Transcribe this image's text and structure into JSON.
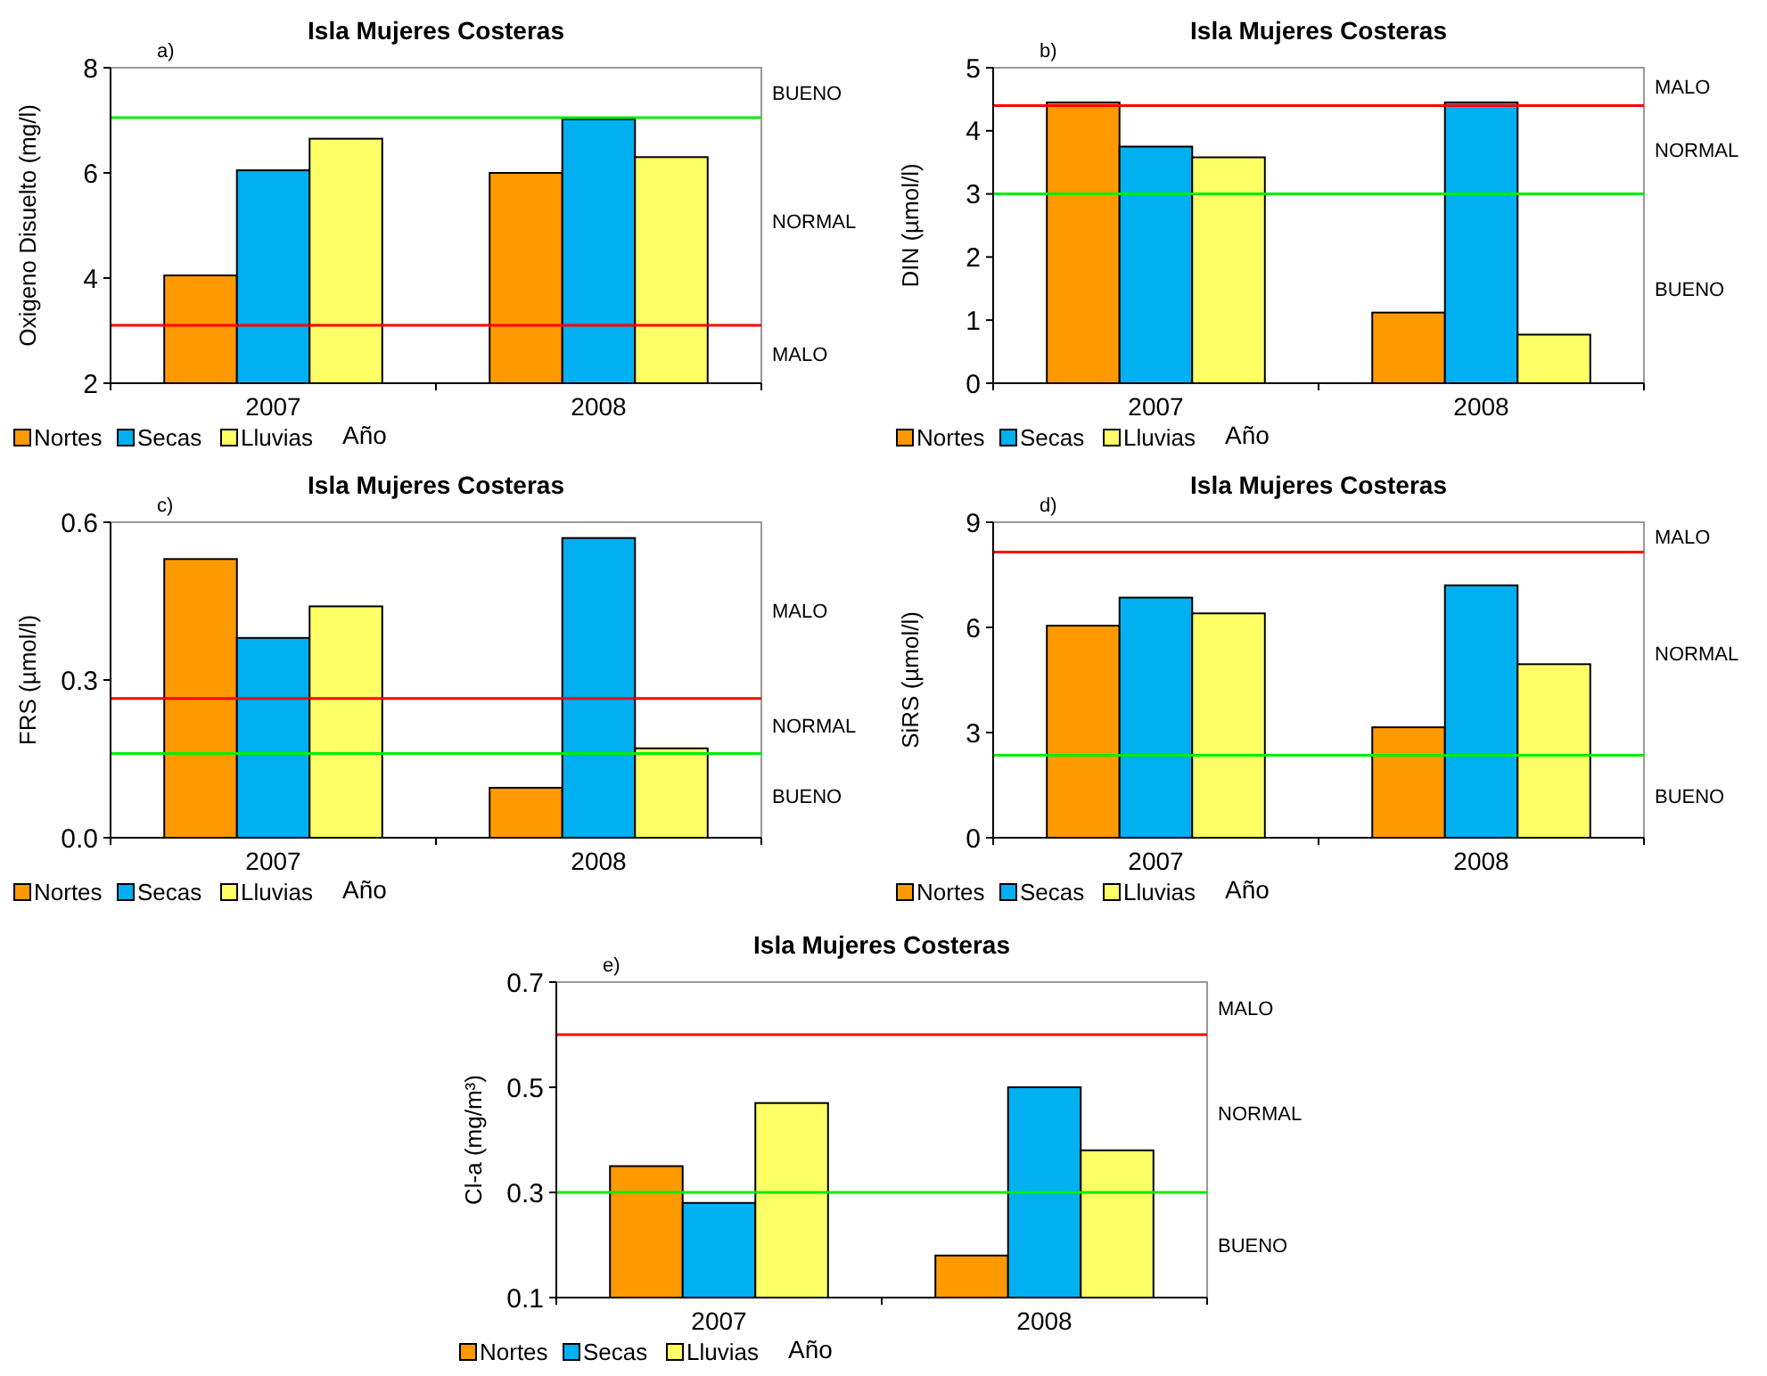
{
  "chart_data": [
    {
      "type": "bar",
      "title": "Isla Mujeres Costeras",
      "xlabel": "Año",
      "ylabel": "Oxigeno Disuelto (mg/l)",
      "categories": [
        "2007",
        "2008"
      ],
      "series": [
        {
          "name": "Nortes",
          "color": "#ff9900",
          "values": [
            4.05,
            6.0
          ]
        },
        {
          "name": "Secas",
          "color": "#00b0f0",
          "values": [
            6.05,
            7.02
          ]
        },
        {
          "name": "Lluvias",
          "color": "#ffff66",
          "values": [
            6.65,
            6.3
          ]
        }
      ],
      "ylim": [
        2,
        8
      ],
      "yticks": [
        2,
        4,
        6,
        8
      ],
      "legend": "bottom left",
      "ref_lines": [
        {
          "axis": "y",
          "value": 7.05,
          "color": "#00ee00"
        },
        {
          "axis": "y",
          "value": 3.1,
          "color": "#ff0000"
        }
      ],
      "annotations": [
        "a)",
        "BUENO",
        "NORMAL",
        "MALO"
      ]
    },
    {
      "type": "bar",
      "title": "Isla Mujeres Costeras",
      "xlabel": "Año",
      "ylabel": "DIN (µmol/l)",
      "categories": [
        "2007",
        "2008"
      ],
      "series": [
        {
          "name": "Nortes",
          "color": "#ff9900",
          "values": [
            4.45,
            1.12
          ]
        },
        {
          "name": "Secas",
          "color": "#00b0f0",
          "values": [
            3.75,
            4.45
          ]
        },
        {
          "name": "Lluvias",
          "color": "#ffff66",
          "values": [
            3.58,
            0.77
          ]
        }
      ],
      "ylim": [
        0,
        5
      ],
      "yticks": [
        0,
        1,
        2,
        3,
        4,
        5
      ],
      "legend": "bottom left",
      "ref_lines": [
        {
          "axis": "y",
          "value": 4.4,
          "color": "#ff0000"
        },
        {
          "axis": "y",
          "value": 3.0,
          "color": "#00ee00"
        }
      ],
      "annotations": [
        "b)",
        "MALO",
        "NORMAL",
        "BUENO"
      ]
    },
    {
      "type": "bar",
      "title": "Isla Mujeres Costeras",
      "xlabel": "Año",
      "ylabel": "FRS (µmol/l)",
      "categories": [
        "2007",
        "2008"
      ],
      "series": [
        {
          "name": "Nortes",
          "color": "#ff9900",
          "values": [
            0.53,
            0.095
          ]
        },
        {
          "name": "Secas",
          "color": "#00b0f0",
          "values": [
            0.38,
            0.57
          ]
        },
        {
          "name": "Lluvias",
          "color": "#ffff66",
          "values": [
            0.44,
            0.17
          ]
        }
      ],
      "ylim": [
        0,
        0.6
      ],
      "yticks": [
        {
          "value": 0,
          "label": "0.0"
        },
        0.3,
        0.6
      ],
      "legend": "bottom left",
      "ref_lines": [
        {
          "axis": "y",
          "value": 0.265,
          "color": "#ff0000"
        },
        {
          "axis": "y",
          "value": 0.16,
          "color": "#00ee00"
        }
      ],
      "annotations": [
        "c)",
        "MALO",
        "NORMAL",
        "BUENO"
      ]
    },
    {
      "type": "bar",
      "title": "Isla Mujeres Costeras",
      "xlabel": "Año",
      "ylabel": "SiRS  (µmol/l)",
      "categories": [
        "2007",
        "2008"
      ],
      "series": [
        {
          "name": "Nortes",
          "color": "#ff9900",
          "values": [
            6.05,
            3.15
          ]
        },
        {
          "name": "Secas",
          "color": "#00b0f0",
          "values": [
            6.85,
            7.2
          ]
        },
        {
          "name": "Lluvias",
          "color": "#ffff66",
          "values": [
            6.4,
            4.95
          ]
        }
      ],
      "ylim": [
        0,
        9
      ],
      "yticks": [
        0,
        3,
        6,
        9
      ],
      "legend": "bottom left",
      "ref_lines": [
        {
          "axis": "y",
          "value": 8.15,
          "color": "#ff0000"
        },
        {
          "axis": "y",
          "value": 2.35,
          "color": "#00ee00"
        }
      ],
      "annotations": [
        "d)",
        "MALO",
        "NORMAL",
        "BUENO"
      ]
    },
    {
      "type": "bar",
      "title": "Isla Mujeres Costeras",
      "xlabel": "Año",
      "ylabel": "Cl-a  (mg/m³)",
      "categories": [
        "2007",
        "2008"
      ],
      "series": [
        {
          "name": "Nortes",
          "color": "#ff9900",
          "values": [
            0.35,
            0.18
          ]
        },
        {
          "name": "Secas",
          "color": "#00b0f0",
          "values": [
            0.28,
            0.5
          ]
        },
        {
          "name": "Lluvias",
          "color": "#ffff66",
          "values": [
            0.47,
            0.38
          ]
        }
      ],
      "ylim": [
        0.1,
        0.7
      ],
      "yticks": [
        0.1,
        0.3,
        0.5,
        0.7
      ],
      "legend": "bottom left",
      "ref_lines": [
        {
          "axis": "y",
          "value": 0.6,
          "color": "#ff0000"
        },
        {
          "axis": "y",
          "value": 0.3,
          "color": "#00ee00"
        }
      ],
      "annotations": [
        "e)",
        "MALO",
        "NORMAL",
        "BUENO"
      ]
    }
  ]
}
